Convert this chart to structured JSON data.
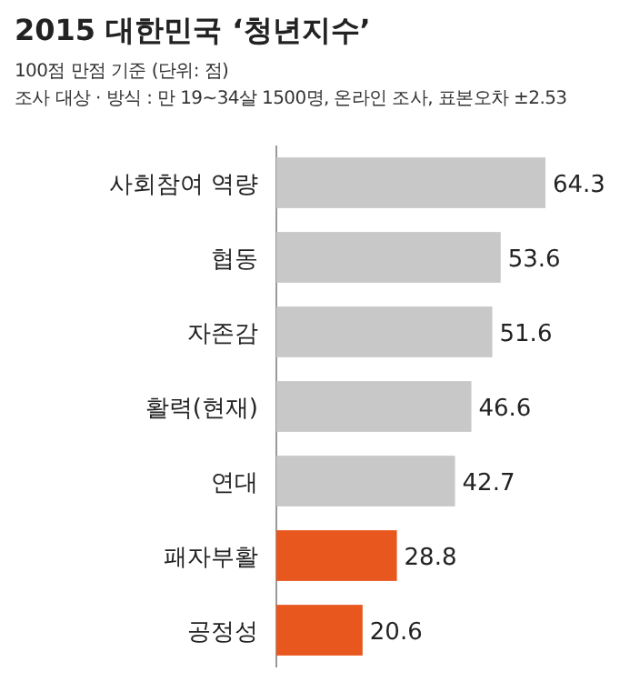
{
  "chart_data": {
    "type": "bar",
    "orientation": "horizontal",
    "title": "2015 대한민국 ‘청년지수’",
    "annotations": [
      "100점 만점 기준 (단위: 점)",
      "조사 대상 · 방식 : 만 19~34살 1500명, 온라인 조사, 표본오차 ±2.53"
    ],
    "categories": [
      "사회참여 역량",
      "협동",
      "자존감",
      "활력(현재)",
      "연대",
      "패자부활",
      "공정성"
    ],
    "values": [
      64.3,
      53.6,
      51.6,
      46.6,
      42.7,
      28.8,
      20.6
    ],
    "colors": [
      "#c8c8c8",
      "#c8c8c8",
      "#c8c8c8",
      "#c8c8c8",
      "#c8c8c8",
      "#e8571e",
      "#e8571e"
    ],
    "data_labels": true
  }
}
